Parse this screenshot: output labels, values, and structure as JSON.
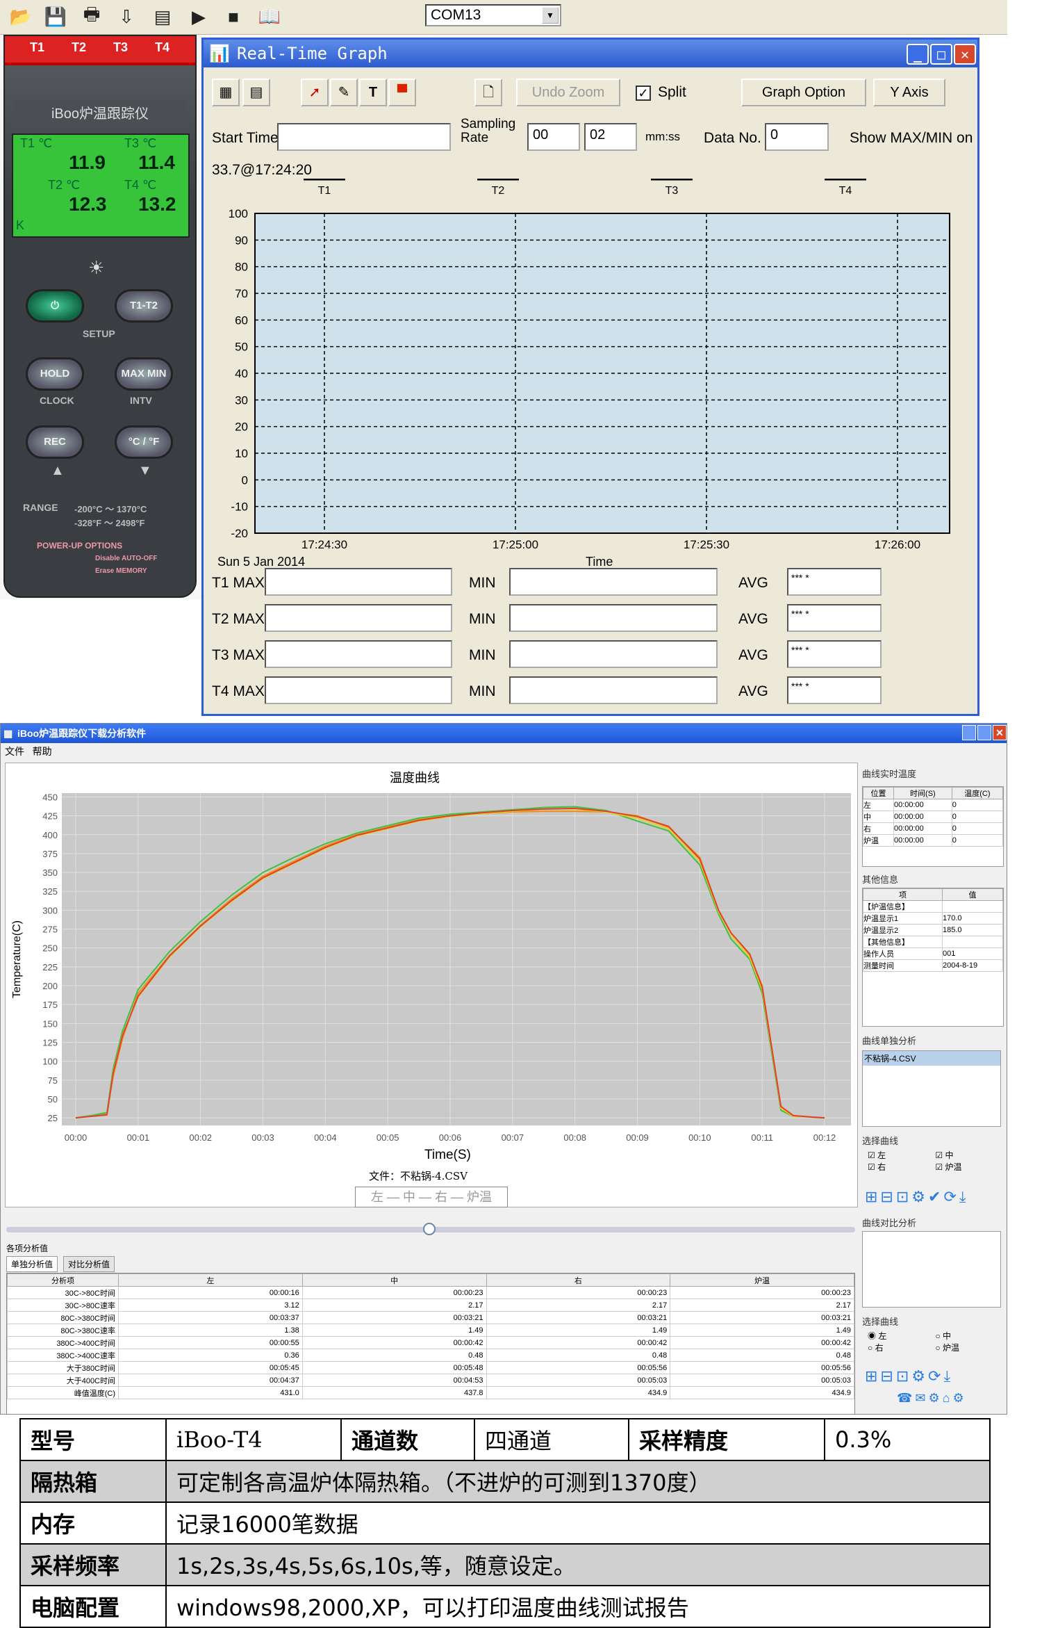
{
  "toolbar": {
    "com_port": "COM13"
  },
  "device": {
    "channels": [
      "T1",
      "T2",
      "T3",
      "T4"
    ],
    "title": "iBoo炉温跟踪仪",
    "lcd": {
      "t1_label": "T1 ℃",
      "t1": "11.9",
      "t3_label": "T3 ℃",
      "t3": "11.4",
      "t2_label": "T2 ℃",
      "t2": "12.3",
      "t4_label": "T4 ℃",
      "t4": "13.2",
      "k": "K"
    },
    "buttons": {
      "power": "⏻",
      "t1t2": "T1-T2",
      "setup": "SETUP",
      "hold": "HOLD",
      "maxmin": "MAX MIN",
      "clock": "CLOCK",
      "intv": "INTV",
      "rec": "REC",
      "cf": "°C / °F"
    },
    "range_label": "RANGE",
    "range_c": "-200°C ～ 1370°C",
    "range_f": "-328°F ～ 2498°F",
    "powerup": "POWER-UP OPTIONS",
    "opt1": "Disable AUTO-OFF",
    "opt2": "Erase MEMORY"
  },
  "rtg": {
    "title": "Real-Time Graph",
    "undo_zoom": "Undo Zoom",
    "split": "Split",
    "graph_option": "Graph Option",
    "y_axis": "Y Axis",
    "start_time_label": "Start Time",
    "sampling_rate_label": "Sampling Rate",
    "rate_min": "00",
    "rate_sec": "02",
    "mmss": "mm:ss",
    "data_no_label": "Data No.",
    "data_no": "0",
    "show_maxmin": "Show MAX/MIN on",
    "cursor_readout": "33.7@17:24:20",
    "date": "Sun 5 Jan 2014",
    "x_label": "Time",
    "stats": [
      {
        "max": "T1 MAX",
        "min": "MIN",
        "avg": "AVG",
        "avg_val": "*** *"
      },
      {
        "max": "T2 MAX",
        "min": "MIN",
        "avg": "AVG",
        "avg_val": "*** *"
      },
      {
        "max": "T3 MAX",
        "min": "MIN",
        "avg": "AVG",
        "avg_val": "*** *"
      },
      {
        "max": "T4 MAX",
        "min": "MIN",
        "avg": "AVG",
        "avg_val": "*** *"
      }
    ]
  },
  "analysis": {
    "title": "iBoo炉温跟踪仪下载分析软件",
    "menu": [
      "文件",
      "帮助"
    ],
    "chart_title": "温度曲线",
    "file_label": "文件：不粘锅-4.CSV",
    "legend": "左 — 中 — 右 — 炉温",
    "side1_title": "曲线实时温度",
    "side1_headers": [
      "位置",
      "时间(S)",
      "温度(C)"
    ],
    "side1_rows": [
      [
        "左",
        "00:00:00",
        "0"
      ],
      [
        "中",
        "00:00:00",
        "0"
      ],
      [
        "右",
        "00:00:00",
        "0"
      ],
      [
        "炉温",
        "00:00:00",
        "0"
      ]
    ],
    "side2_title": "其他信息",
    "side2_headers": [
      "项",
      "值"
    ],
    "side2_rows": [
      [
        "【炉温信息】",
        ""
      ],
      [
        "炉温显示1",
        "170.0"
      ],
      [
        "炉温显示2",
        "185.0"
      ],
      [
        "【其他信息】",
        ""
      ],
      [
        "操作人员",
        "001"
      ],
      [
        "测量时间",
        "2004-8-19"
      ]
    ],
    "side3_title": "曲线单独分析",
    "side3_file": "不粘锅-4.CSV",
    "select_curve": "选择曲线",
    "curves": [
      "左",
      "中",
      "右",
      "炉温"
    ],
    "compare_title": "曲线对比分析",
    "bottom_title": "各项分析值",
    "tabs": [
      "单独分析值",
      "对比分析值"
    ],
    "table_headers": [
      "分析项",
      "左",
      "中",
      "右",
      "炉温"
    ],
    "table_rows": [
      [
        "30C->80C时间",
        "00:00:16",
        "00:00:23",
        "00:00:23",
        "00:00:23"
      ],
      [
        "30C->80C速率",
        "3.12",
        "2.17",
        "2.17",
        "2.17"
      ],
      [
        "80C->380C时间",
        "00:03:37",
        "00:03:21",
        "00:03:21",
        "00:03:21"
      ],
      [
        "80C->380C速率",
        "1.38",
        "1.49",
        "1.49",
        "1.49"
      ],
      [
        "380C->400C时间",
        "00:00:55",
        "00:00:42",
        "00:00:42",
        "00:00:42"
      ],
      [
        "380C->400C速率",
        "0.36",
        "0.48",
        "0.48",
        "0.48"
      ],
      [
        "大于380C时间",
        "00:05:45",
        "00:05:48",
        "00:05:56",
        "00:05:56"
      ],
      [
        "大于400C时间",
        "00:04:37",
        "00:04:53",
        "00:05:03",
        "00:05:03"
      ],
      [
        "峰值温度(C)",
        "431.0",
        "437.8",
        "434.9",
        "434.9"
      ]
    ]
  },
  "chart_data": [
    {
      "type": "line",
      "title": "",
      "xlabel": "Time",
      "x_ticks": [
        "17:24:30",
        "17:25:00",
        "17:25:30",
        "17:26:00"
      ],
      "ylim": [
        -20,
        100
      ],
      "y_ticks": [
        100,
        90,
        80,
        70,
        60,
        50,
        40,
        30,
        20,
        10,
        0,
        -10,
        -20
      ],
      "series": [
        {
          "name": "T1",
          "values": []
        },
        {
          "name": "T2",
          "values": []
        },
        {
          "name": "T3",
          "values": []
        },
        {
          "name": "T4",
          "values": []
        }
      ]
    },
    {
      "type": "line",
      "title": "温度曲线",
      "xlabel": "Time(S)",
      "ylabel": "Temperature(C)",
      "ylim": [
        0,
        450
      ],
      "y_ticks": [
        450,
        425,
        400,
        375,
        350,
        325,
        300,
        275,
        250,
        225,
        200,
        175,
        150,
        125,
        100,
        75,
        50,
        25
      ],
      "x_ticks": [
        "00:00",
        "00:01",
        "00:02",
        "00:03",
        "00:04",
        "00:05",
        "00:06",
        "00:07",
        "00:08",
        "00:09",
        "00:10",
        "00:11",
        "00:12"
      ],
      "x": [
        0,
        0.25,
        0.5,
        0.6,
        0.75,
        1,
        1.5,
        2,
        2.5,
        3,
        3.5,
        4,
        4.5,
        5,
        5.5,
        6,
        6.5,
        7,
        7.5,
        8,
        8.5,
        9,
        9.5,
        10,
        10.3,
        10.5,
        10.8,
        11,
        11.3,
        11.5,
        11.8,
        12
      ],
      "series": [
        {
          "name": "左",
          "color": "#f08c1a",
          "values": [
            25,
            28,
            30,
            80,
            130,
            190,
            240,
            280,
            315,
            345,
            365,
            385,
            400,
            410,
            420,
            425,
            428,
            430,
            431,
            431,
            430,
            425,
            410,
            370,
            300,
            270,
            240,
            200,
            40,
            28,
            26,
            25
          ]
        },
        {
          "name": "中",
          "color": "#40c040",
          "values": [
            25,
            28,
            32,
            90,
            140,
            195,
            245,
            285,
            320,
            350,
            370,
            388,
            402,
            412,
            422,
            427,
            430,
            433,
            436,
            437,
            432,
            418,
            405,
            360,
            295,
            262,
            235,
            190,
            35,
            27,
            26,
            25
          ]
        },
        {
          "name": "右",
          "color": "#e8d020",
          "values": [
            25,
            27,
            29,
            85,
            135,
            185,
            238,
            278,
            312,
            342,
            362,
            382,
            398,
            408,
            418,
            424,
            428,
            431,
            434,
            434,
            430,
            422,
            408,
            365,
            298,
            268,
            238,
            195,
            38,
            27,
            26,
            25
          ]
        },
        {
          "name": "炉温",
          "color": "#e04030",
          "values": [
            25,
            27,
            29,
            84,
            134,
            186,
            239,
            279,
            313,
            343,
            363,
            383,
            399,
            409,
            419,
            425,
            429,
            432,
            434,
            434.9,
            431,
            424,
            411,
            368,
            300,
            270,
            242,
            198,
            40,
            28,
            26,
            25
          ]
        }
      ]
    }
  ],
  "spec": {
    "rows": [
      [
        "型号",
        "iBoo-T4",
        "通道数",
        "四通道",
        "采样精度",
        "0.3%"
      ],
      [
        "隔热箱",
        "可定制各高温炉体隔热箱。（不进炉的可测到1370度）"
      ],
      [
        "内存",
        "记录16000笔数据"
      ],
      [
        "采样频率",
        "1s,2s,3s,4s,5s,6s,10s,等，随意设定。"
      ],
      [
        "电脑配置",
        "windows98,2000,XP，可以打印温度曲线测试报告"
      ]
    ]
  }
}
